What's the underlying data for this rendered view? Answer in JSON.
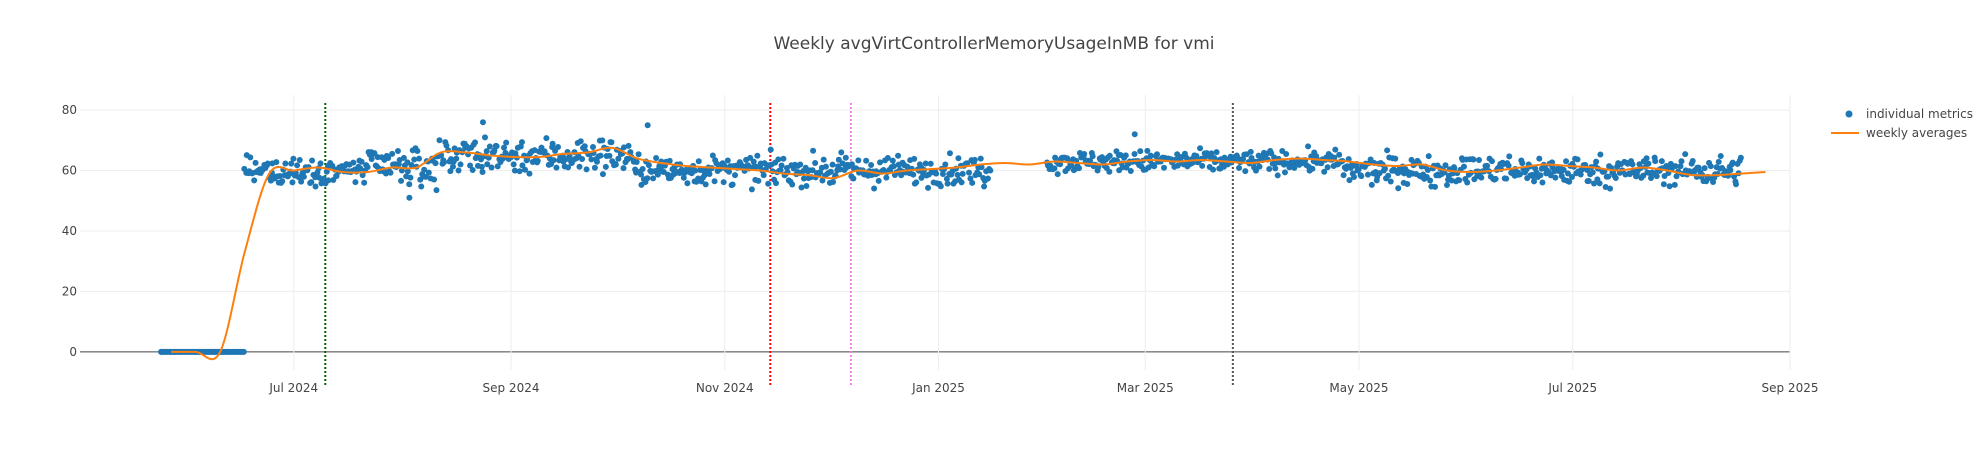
{
  "chart_data": {
    "type": "scatter",
    "title": "Weekly avgVirtControllerMemoryUsageInMB for vmi",
    "xlabel": "",
    "ylabel": "",
    "x_range": [
      "2024-05-01",
      "2025-09-01"
    ],
    "y_range": [
      -6,
      85
    ],
    "x_ticks": [
      {
        "date": "2024-07-01",
        "label": "Jul 2024"
      },
      {
        "date": "2024-09-01",
        "label": "Sep 2024"
      },
      {
        "date": "2024-11-01",
        "label": "Nov 2024"
      },
      {
        "date": "2025-01-01",
        "label": "Jan 2025"
      },
      {
        "date": "2025-03-01",
        "label": "Mar 2025"
      },
      {
        "date": "2025-05-01",
        "label": "May 2025"
      },
      {
        "date": "2025-07-01",
        "label": "Jul 2025"
      },
      {
        "date": "2025-09-01",
        "label": "Sep 2025"
      }
    ],
    "y_ticks": [
      0,
      20,
      40,
      60,
      80
    ],
    "grid": true,
    "legend_position": "top-right",
    "series": [
      {
        "name": "individual metrics",
        "kind": "points",
        "color": "#1f77b4",
        "x_start": "2024-05-24",
        "x_end": "2025-08-18",
        "points_per_day": 3,
        "segments": [
          {
            "start": "2024-05-24",
            "end": "2024-06-16",
            "mean": 0,
            "spread": 0
          },
          {
            "start": "2024-06-17",
            "end": "2024-07-20",
            "mean": 60,
            "spread": 4
          },
          {
            "start": "2024-07-21",
            "end": "2024-08-10",
            "mean": 61,
            "spread": 5
          },
          {
            "start": "2024-08-11",
            "end": "2024-10-05",
            "mean": 65,
            "spread": 5
          },
          {
            "start": "2024-10-06",
            "end": "2024-12-10",
            "mean": 60,
            "spread": 4
          },
          {
            "start": "2024-12-11",
            "end": "2025-01-15",
            "mean": 60,
            "spread": 4
          },
          {
            "start": "2025-01-16",
            "end": "2025-01-31",
            "mean": null,
            "spread": 0
          },
          {
            "start": "2025-02-01",
            "end": "2025-04-25",
            "mean": 63,
            "spread": 3
          },
          {
            "start": "2025-04-26",
            "end": "2025-08-18",
            "mean": 60,
            "spread": 4
          }
        ],
        "outliers": [
          {
            "x": "2024-08-24",
            "y": 76
          },
          {
            "x": "2024-10-10",
            "y": 75
          },
          {
            "x": "2025-02-26",
            "y": 72
          },
          {
            "x": "2024-08-03",
            "y": 51
          }
        ]
      },
      {
        "name": "weekly averages",
        "kind": "line",
        "color": "#ff7f0e",
        "x": [
          "2024-05-27",
          "2024-06-03",
          "2024-06-10",
          "2024-06-17",
          "2024-06-24",
          "2024-07-01",
          "2024-07-08",
          "2024-07-15",
          "2024-07-22",
          "2024-07-29",
          "2024-08-05",
          "2024-08-12",
          "2024-08-19",
          "2024-08-26",
          "2024-09-02",
          "2024-09-09",
          "2024-09-16",
          "2024-09-23",
          "2024-09-30",
          "2024-10-07",
          "2024-10-14",
          "2024-10-21",
          "2024-10-28",
          "2024-11-04",
          "2024-11-11",
          "2024-11-18",
          "2024-11-25",
          "2024-12-02",
          "2024-12-09",
          "2024-12-16",
          "2024-12-23",
          "2024-12-30",
          "2025-01-06",
          "2025-01-13",
          "2025-01-20",
          "2025-01-27",
          "2025-02-03",
          "2025-02-10",
          "2025-02-17",
          "2025-02-24",
          "2025-03-03",
          "2025-03-10",
          "2025-03-17",
          "2025-03-24",
          "2025-03-31",
          "2025-04-07",
          "2025-04-14",
          "2025-04-21",
          "2025-04-28",
          "2025-05-05",
          "2025-05-12",
          "2025-05-19",
          "2025-05-26",
          "2025-06-02",
          "2025-06-09",
          "2025-06-16",
          "2025-06-23",
          "2025-06-30",
          "2025-07-07",
          "2025-07-14",
          "2025-07-21",
          "2025-07-28",
          "2025-08-04",
          "2025-08-11",
          "2025-08-18",
          "2025-08-25"
        ],
        "y": [
          0,
          0,
          0,
          33,
          59,
          60,
          61,
          59.5,
          59.5,
          61,
          61,
          66,
          66,
          65,
          64.5,
          64.5,
          65.5,
          66,
          67.5,
          64,
          62.5,
          61.5,
          61,
          60.5,
          60,
          59,
          58.5,
          57.5,
          60,
          59,
          60,
          60.5,
          61,
          62,
          62.5,
          62,
          63,
          62.5,
          62,
          63,
          63.5,
          63,
          63.5,
          63,
          62.5,
          63.5,
          64,
          63.5,
          63,
          62,
          61.5,
          62,
          60,
          59.5,
          60,
          61,
          62,
          61.5,
          61,
          60,
          61,
          60,
          58.5,
          58.5,
          59,
          59.5
        ]
      }
    ],
    "annotations": [
      {
        "type": "vline",
        "x": "2024-07-10",
        "color": "#006400",
        "style": "dotted"
      },
      {
        "type": "vline",
        "x": "2024-11-14",
        "color": "#ff0000",
        "style": "dotted"
      },
      {
        "type": "vline",
        "x": "2024-12-07",
        "color": "#ee82ee",
        "style": "dotted"
      },
      {
        "type": "vline",
        "x": "2025-03-26",
        "color": "#555555",
        "style": "dotted"
      }
    ]
  }
}
